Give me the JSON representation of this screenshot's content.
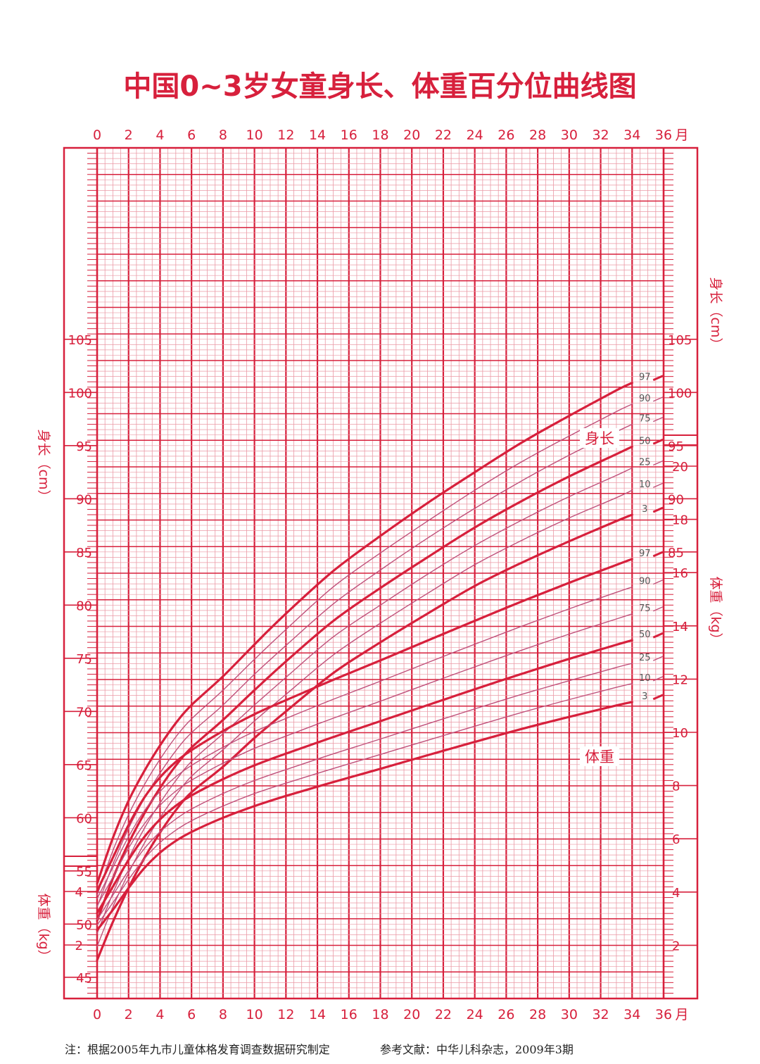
{
  "title": "中国0~3岁女童身长、体重百分位曲线图",
  "footnote": "注：根据2005年九市儿童体格发育调查数据研究制定",
  "reference": "参考文献：中华儿科杂志，2009年3期",
  "colors": {
    "accent": "#d7203c",
    "grid_minor": "#eb9aa6",
    "curve_mid": "#c0507a"
  },
  "chart_data": {
    "type": "line",
    "x_unit": "月",
    "x_ticks": [
      "0",
      "2",
      "4",
      "6",
      "8",
      "10",
      "12",
      "14",
      "16",
      "18",
      "20",
      "22",
      "24",
      "26",
      "28",
      "30",
      "32",
      "34",
      "36"
    ],
    "xlim": [
      0,
      36
    ],
    "height_axis": {
      "label": "身长（cm）",
      "ticks": [
        "45",
        "50",
        "55",
        "60",
        "65",
        "70",
        "75",
        "80",
        "85",
        "90",
        "95",
        "100",
        "105"
      ],
      "ylim": [
        43,
        110
      ]
    },
    "weight_axis_left": {
      "label": "体重（kg）",
      "ticks": [
        "2",
        "4"
      ]
    },
    "weight_axis_right": {
      "label": "体重（kg）",
      "ticks": [
        "2",
        "4",
        "6",
        "8",
        "10",
        "12",
        "14",
        "16",
        "18",
        "20"
      ]
    },
    "x": [
      0,
      1,
      2,
      3,
      4,
      5,
      6,
      8,
      10,
      12,
      15,
      18,
      21,
      24,
      27,
      30,
      33,
      34
    ],
    "height_series": [
      {
        "name": "3",
        "values": [
          46.6,
          50.2,
          53.4,
          56.2,
          58.6,
          60.7,
          62.4,
          64.8,
          67.5,
          70.0,
          73.6,
          76.5,
          79.2,
          81.8,
          84.0,
          86.0,
          87.9,
          88.5
        ]
      },
      {
        "name": "10",
        "values": [
          47.9,
          51.6,
          54.8,
          57.6,
          60.0,
          62.1,
          63.9,
          66.4,
          69.1,
          71.6,
          75.3,
          78.3,
          81.1,
          83.8,
          86.1,
          88.2,
          90.1,
          90.8
        ]
      },
      {
        "name": "25",
        "values": [
          49.1,
          52.9,
          56.2,
          59.0,
          61.4,
          63.5,
          65.3,
          67.9,
          70.6,
          73.2,
          77.0,
          80.0,
          82.9,
          85.6,
          88.0,
          90.2,
          92.2,
          92.9
        ]
      },
      {
        "name": "50",
        "values": [
          50.3,
          54.3,
          57.6,
          60.4,
          62.8,
          64.9,
          66.6,
          69.2,
          72.0,
          74.7,
          78.5,
          81.6,
          84.5,
          87.3,
          89.8,
          92.1,
          94.2,
          94.9
        ]
      },
      {
        "name": "75",
        "values": [
          51.6,
          55.6,
          59.0,
          61.8,
          64.2,
          66.3,
          68.0,
          70.6,
          73.5,
          76.2,
          80.1,
          83.3,
          86.3,
          89.1,
          91.7,
          94.1,
          96.3,
          97.0
        ]
      },
      {
        "name": "90",
        "values": [
          52.7,
          56.9,
          60.3,
          63.1,
          65.5,
          67.6,
          69.3,
          72.0,
          74.9,
          77.7,
          81.7,
          84.9,
          87.9,
          90.8,
          93.5,
          95.9,
          98.2,
          98.9
        ]
      },
      {
        "name": "97",
        "values": [
          53.8,
          58.1,
          61.6,
          64.4,
          66.8,
          68.9,
          70.6,
          73.3,
          76.3,
          79.2,
          83.2,
          86.5,
          89.6,
          92.5,
          95.3,
          97.8,
          100.2,
          100.9
        ]
      }
    ],
    "weight_series": [
      {
        "name": "3",
        "values": [
          2.57,
          3.33,
          4.15,
          4.9,
          5.48,
          5.92,
          6.26,
          6.79,
          7.23,
          7.61,
          8.13,
          8.63,
          9.14,
          9.64,
          10.13,
          10.58,
          11.01,
          11.14
        ]
      },
      {
        "name": "10",
        "values": [
          2.76,
          3.6,
          4.47,
          5.25,
          5.86,
          6.32,
          6.68,
          7.23,
          7.7,
          8.09,
          8.64,
          9.17,
          9.7,
          10.23,
          10.75,
          11.23,
          11.69,
          11.83
        ]
      },
      {
        "name": "25",
        "values": [
          2.96,
          3.88,
          4.81,
          5.63,
          6.26,
          6.74,
          7.12,
          7.7,
          8.19,
          8.6,
          9.19,
          9.75,
          10.32,
          10.88,
          11.43,
          11.94,
          12.44,
          12.59
        ]
      },
      {
        "name": "50",
        "values": [
          3.21,
          4.2,
          5.21,
          6.07,
          6.73,
          7.24,
          7.63,
          8.24,
          8.76,
          9.2,
          9.82,
          10.42,
          11.02,
          11.62,
          12.2,
          12.76,
          13.29,
          13.46
        ]
      },
      {
        "name": "75",
        "values": [
          3.49,
          4.56,
          5.65,
          6.56,
          7.26,
          7.79,
          8.2,
          8.84,
          9.4,
          9.86,
          10.53,
          11.17,
          11.82,
          12.46,
          13.09,
          13.69,
          14.26,
          14.45
        ]
      },
      {
        "name": "90",
        "values": [
          3.75,
          4.92,
          6.08,
          7.05,
          7.78,
          8.33,
          8.76,
          9.44,
          10.03,
          10.52,
          11.24,
          11.92,
          12.62,
          13.31,
          13.99,
          14.64,
          15.26,
          15.46
        ]
      },
      {
        "name": "97",
        "values": [
          4.04,
          5.29,
          6.52,
          7.55,
          8.31,
          8.89,
          9.33,
          10.05,
          10.68,
          11.21,
          11.97,
          12.7,
          13.45,
          14.19,
          14.92,
          15.62,
          16.29,
          16.51
        ]
      }
    ],
    "region_labels": {
      "height": "身长",
      "weight": "体重"
    },
    "grid": true
  }
}
